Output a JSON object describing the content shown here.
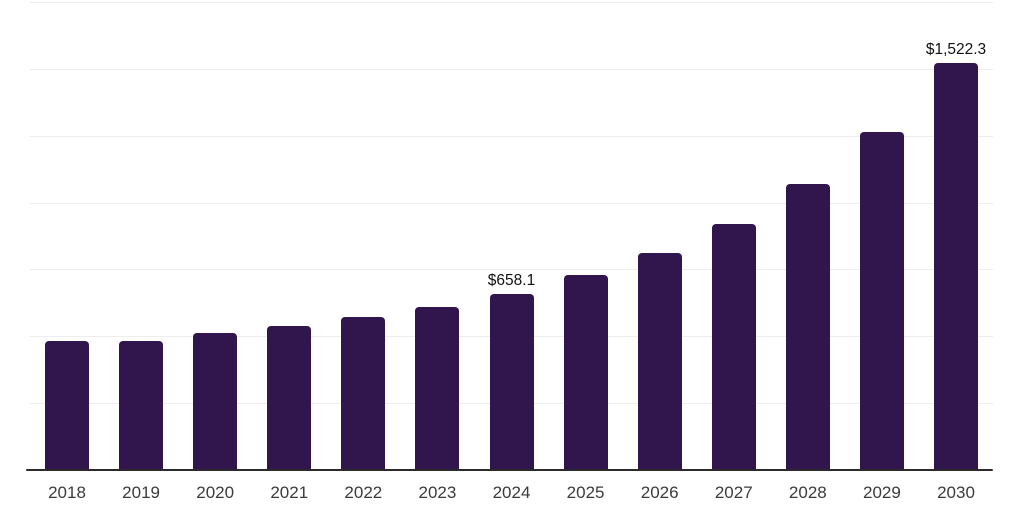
{
  "page": {
    "background_color": "#ffffff"
  },
  "chart_data": {
    "type": "bar",
    "title": "",
    "xlabel": "",
    "ylabel": "",
    "categories": [
      "2018",
      "2019",
      "2020",
      "2021",
      "2022",
      "2023",
      "2024",
      "2025",
      "2026",
      "2027",
      "2028",
      "2029",
      "2030"
    ],
    "values": [
      481,
      482,
      511,
      538,
      572,
      610,
      658.1,
      729,
      812,
      920,
      1068,
      1263,
      1522.3
    ],
    "data_labels": [
      "",
      "",
      "",
      "",
      "",
      "",
      "$658.1",
      "",
      "",
      "",
      "",
      "",
      "$1,522.3"
    ],
    "ylim": [
      0,
      1750
    ],
    "gridline_step": 250,
    "grid": true,
    "legend": false,
    "bar_color": "#31154d",
    "gridline_color": "#ededed",
    "axis_line_color": "#2b2b2b",
    "tick_label_color": "#3b3b3b",
    "data_label_color": "#111111"
  }
}
